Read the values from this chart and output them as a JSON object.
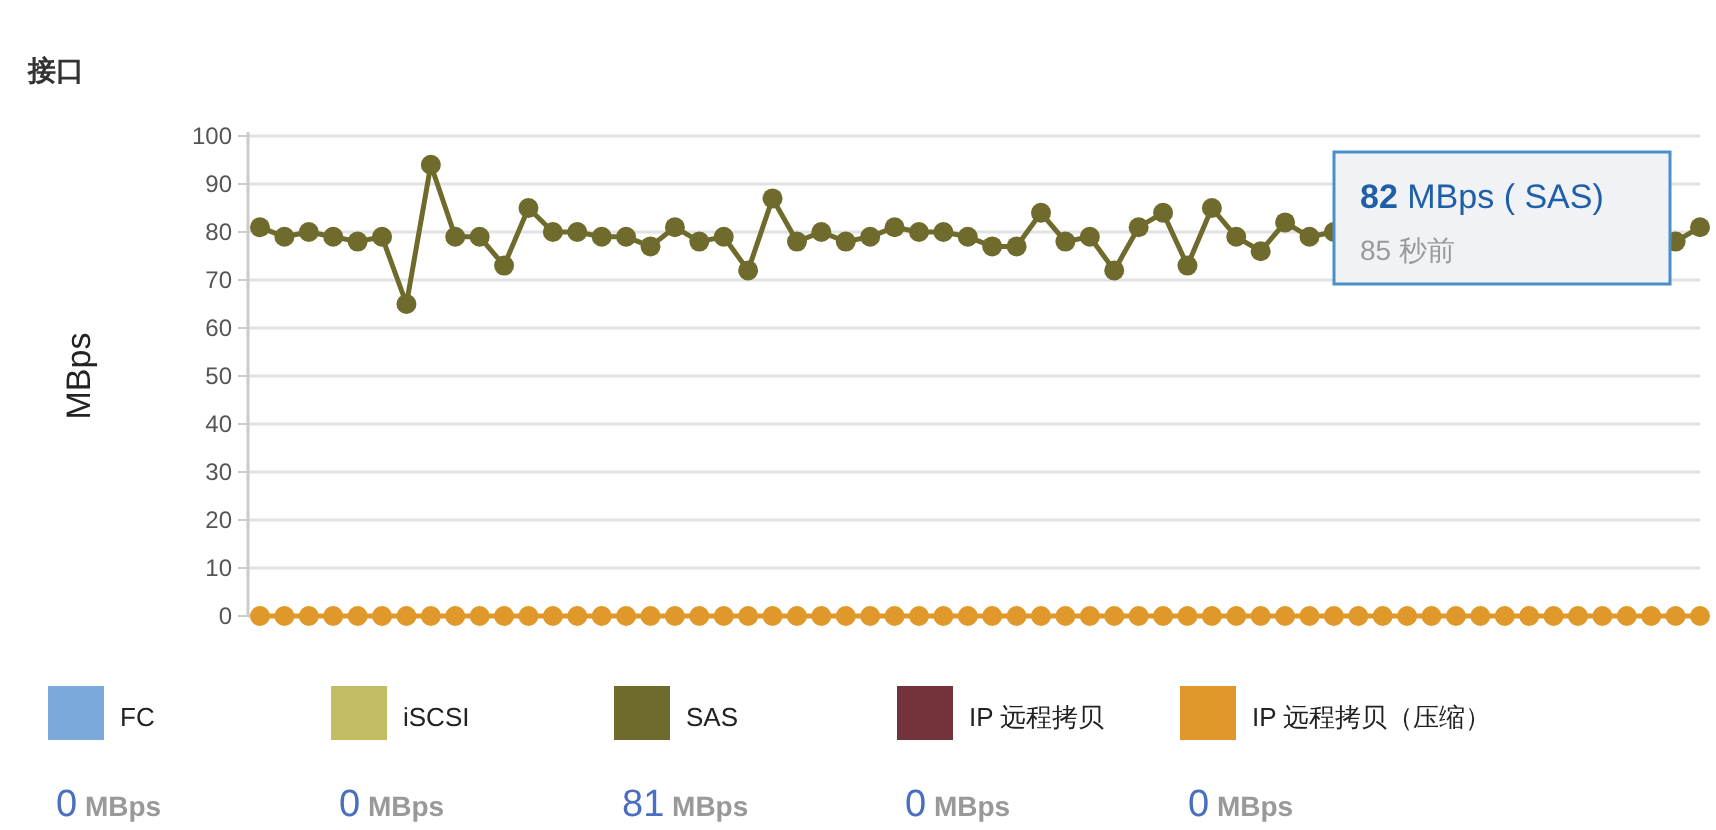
{
  "chart_data": {
    "type": "line",
    "title": "接口",
    "ylabel": "MBps",
    "categories": [
      null,
      null,
      null,
      null,
      null,
      null,
      null,
      null,
      null,
      null,
      null,
      null,
      null,
      null,
      null,
      null,
      null,
      null,
      null,
      null,
      null,
      null,
      null,
      null,
      null,
      null,
      null,
      null,
      null,
      null,
      null,
      null,
      null,
      null,
      null,
      null,
      null,
      null,
      null,
      null,
      null,
      null,
      null,
      null,
      null,
      null,
      null,
      null,
      null,
      null,
      null,
      null,
      null,
      null,
      null,
      null,
      null,
      null,
      null,
      null
    ],
    "series": [
      {
        "name": "FC",
        "color": "#7aaadc",
        "values": [
          null,
          null,
          null,
          null,
          null,
          null,
          null,
          null,
          null,
          null,
          null,
          null,
          null,
          null,
          null,
          null,
          null,
          null,
          null,
          null,
          null,
          null,
          null,
          null,
          null,
          null,
          null,
          null,
          null,
          null,
          null,
          null,
          null,
          null,
          null,
          null,
          null,
          null,
          null,
          null,
          null,
          null,
          null,
          null,
          null,
          null,
          null,
          null,
          null,
          null,
          null,
          null,
          null,
          null,
          null,
          null,
          null,
          null,
          null,
          null
        ]
      },
      {
        "name": "iSCSI",
        "color": "#c2bd62",
        "values": [
          null,
          null,
          null,
          null,
          null,
          null,
          null,
          null,
          null,
          null,
          null,
          null,
          null,
          null,
          null,
          null,
          null,
          null,
          null,
          null,
          null,
          null,
          null,
          null,
          null,
          null,
          null,
          null,
          null,
          null,
          null,
          null,
          null,
          null,
          null,
          null,
          null,
          null,
          null,
          null,
          null,
          null,
          null,
          null,
          null,
          null,
          null,
          null,
          null,
          null,
          null,
          null,
          null,
          null,
          null,
          null,
          null,
          null,
          null,
          null
        ]
      },
      {
        "name": "SAS",
        "color": "#6e6b2c",
        "values": [
          81,
          79,
          80,
          79,
          78,
          79,
          65,
          94,
          79,
          79,
          73,
          85,
          80,
          80,
          79,
          79,
          77,
          81,
          78,
          79,
          72,
          87,
          78,
          80,
          78,
          79,
          81,
          80,
          80,
          79,
          77,
          77,
          84,
          78,
          79,
          72,
          81,
          84,
          73,
          85,
          79,
          76,
          82,
          79,
          80,
          null,
          null,
          null,
          null,
          null,
          null,
          null,
          null,
          null,
          null,
          null,
          null,
          null,
          78,
          81
        ]
      },
      {
        "name": "IP 远程拷贝",
        "color": "#74323a",
        "values": [
          null,
          null,
          null,
          null,
          null,
          null,
          null,
          null,
          null,
          null,
          null,
          null,
          null,
          null,
          null,
          null,
          null,
          null,
          null,
          null,
          null,
          null,
          null,
          null,
          null,
          null,
          null,
          null,
          null,
          null,
          null,
          null,
          null,
          null,
          null,
          null,
          null,
          null,
          null,
          null,
          null,
          null,
          null,
          null,
          null,
          null,
          null,
          null,
          null,
          null,
          null,
          null,
          null,
          null,
          null,
          null,
          null,
          null,
          null,
          null
        ]
      },
      {
        "name": "IP 远程拷贝（压缩）",
        "color": "#e0982a",
        "values": [
          0,
          0,
          0,
          0,
          0,
          0,
          0,
          0,
          0,
          0,
          0,
          0,
          0,
          0,
          0,
          0,
          0,
          0,
          0,
          0,
          0,
          0,
          0,
          0,
          0,
          0,
          0,
          0,
          0,
          0,
          0,
          0,
          0,
          0,
          0,
          0,
          0,
          0,
          0,
          0,
          0,
          0,
          0,
          0,
          0,
          0,
          0,
          0,
          0,
          0,
          0,
          0,
          0,
          0,
          0,
          0,
          0,
          0,
          0,
          0
        ]
      }
    ],
    "ylim": [
      0,
      100
    ],
    "yticks": [
      0,
      10,
      20,
      30,
      40,
      50,
      60,
      70,
      80,
      90,
      100
    ],
    "grid": "y",
    "marker": "circle",
    "legend": "bottom",
    "annotations": [
      "82 MBps ( SAS)",
      "85 秒前",
      "0 MBps",
      "0 MBps",
      "81 MBps",
      "0 MBps",
      "0 MBps"
    ]
  }
}
